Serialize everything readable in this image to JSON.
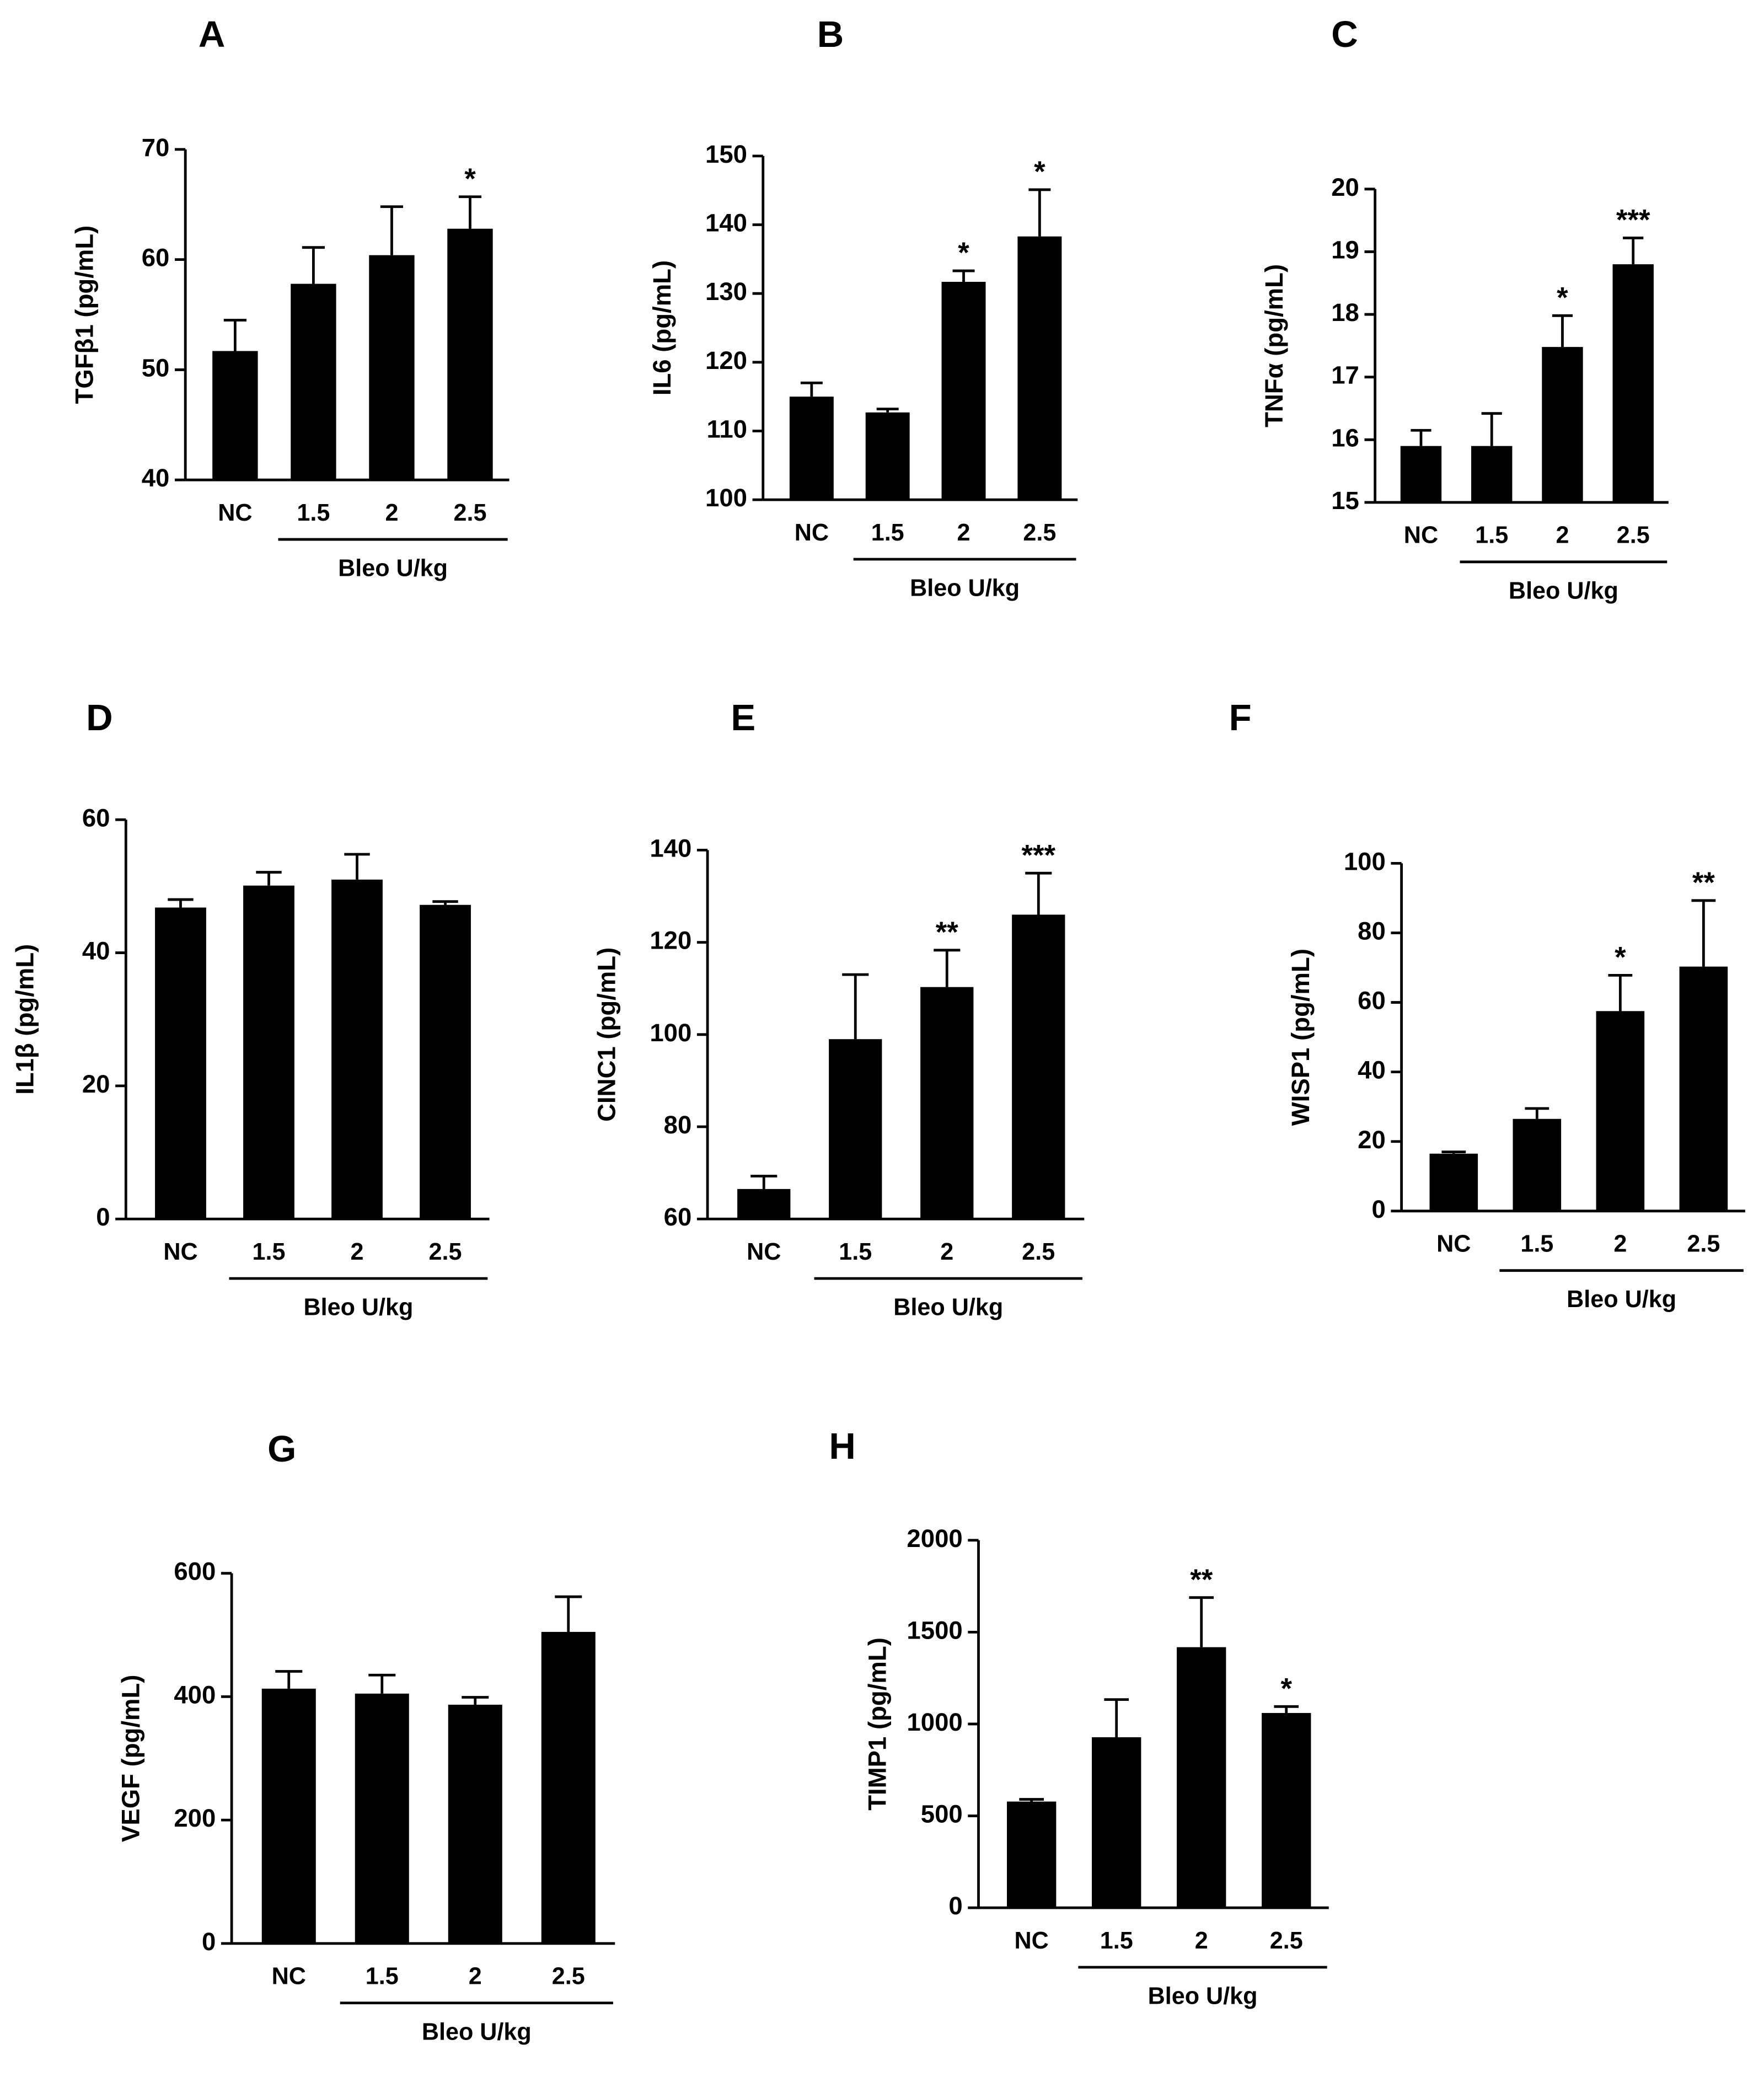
{
  "chart_data": [
    {
      "type": "bar",
      "panel": "A",
      "ylabel": "TGFβ1 (pg/mL)",
      "categories": [
        "NC",
        "1.5",
        "2",
        "2.5"
      ],
      "group_label": "Bleo U/kg",
      "values": [
        51.7,
        57.8,
        60.4,
        62.8
      ],
      "errors": [
        2.8,
        3.3,
        4.4,
        2.9
      ],
      "annotations": [
        null,
        null,
        null,
        "*"
      ],
      "color": "#000000",
      "ylim": [
        40,
        70
      ],
      "yticks": [
        40,
        50,
        60,
        70
      ]
    },
    {
      "type": "bar",
      "panel": "B",
      "ylabel": "IL6 (pg/mL)",
      "categories": [
        "NC",
        "1.5",
        "2",
        "2.5"
      ],
      "group_label": "Bleo U/kg",
      "values": [
        115,
        112.7,
        131.7,
        138.3
      ],
      "errors": [
        2,
        0.5,
        1.6,
        6.8
      ],
      "annotations": [
        null,
        null,
        "*",
        "*"
      ],
      "color": "#000000",
      "ylim": [
        100,
        150
      ],
      "yticks": [
        100,
        110,
        120,
        130,
        140,
        150
      ]
    },
    {
      "type": "bar",
      "panel": "C",
      "ylabel": "TNFα (pg/mL)",
      "categories": [
        "NC",
        "1.5",
        "2",
        "2.5"
      ],
      "group_label": "Bleo U/kg",
      "values": [
        15.9,
        15.9,
        17.48,
        18.8
      ],
      "errors": [
        0.25,
        0.52,
        0.5,
        0.42
      ],
      "annotations": [
        null,
        null,
        "*",
        "***"
      ],
      "color": "#000000",
      "ylim": [
        15,
        20
      ],
      "yticks": [
        15,
        16,
        17,
        18,
        19,
        20
      ]
    },
    {
      "type": "bar",
      "panel": "D",
      "ylabel": "IL1β (pg/mL)",
      "categories": [
        "NC",
        "1.5",
        "2",
        "2.5"
      ],
      "group_label": "Bleo U/kg",
      "values": [
        46.8,
        50.1,
        51,
        47.2
      ],
      "errors": [
        1.2,
        2,
        3.8,
        0.5
      ],
      "annotations": [
        null,
        null,
        null,
        null
      ],
      "color": "#000000",
      "ylim": [
        0,
        60
      ],
      "yticks": [
        0,
        20,
        40,
        60
      ]
    },
    {
      "type": "bar",
      "panel": "E",
      "ylabel": "CINC1 (pg/mL)",
      "categories": [
        "NC",
        "1.5",
        "2",
        "2.5"
      ],
      "group_label": "Bleo U/kg",
      "values": [
        66.5,
        99,
        110.3,
        126
      ],
      "errors": [
        2.8,
        14,
        8,
        9
      ],
      "annotations": [
        null,
        null,
        "**",
        "***"
      ],
      "color": "#000000",
      "ylim": [
        60,
        140
      ],
      "yticks": [
        60,
        80,
        100,
        120,
        140
      ]
    },
    {
      "type": "bar",
      "panel": "F",
      "ylabel": "WISP1 (pg/mL)",
      "categories": [
        "NC",
        "1.5",
        "2",
        "2.5"
      ],
      "group_label": "Bleo U/kg",
      "values": [
        16.5,
        26.5,
        57.5,
        70.3
      ],
      "errors": [
        0.5,
        3,
        10.3,
        19
      ],
      "annotations": [
        null,
        null,
        "*",
        "**"
      ],
      "color": "#000000",
      "ylim": [
        0,
        100
      ],
      "yticks": [
        0,
        20,
        40,
        60,
        80,
        100
      ]
    },
    {
      "type": "bar",
      "panel": "G",
      "ylabel": "VEGF (pg/mL)",
      "categories": [
        "NC",
        "1.5",
        "2",
        "2.5"
      ],
      "group_label": "Bleo U/kg",
      "values": [
        413,
        405,
        387,
        505
      ],
      "errors": [
        28,
        30,
        12,
        57
      ],
      "annotations": [
        null,
        null,
        null,
        null
      ],
      "color": "#000000",
      "ylim": [
        0,
        600
      ],
      "yticks": [
        0,
        200,
        400,
        600
      ]
    },
    {
      "type": "bar",
      "panel": "H",
      "ylabel": "TIMP1 (pg/mL)",
      "categories": [
        "NC",
        "1.5",
        "2",
        "2.5"
      ],
      "group_label": "Bleo U/kg",
      "values": [
        578,
        928,
        1418,
        1060
      ],
      "errors": [
        12,
        205,
        270,
        35
      ],
      "annotations": [
        null,
        null,
        "**",
        "*"
      ],
      "color": "#000000",
      "ylim": [
        0,
        2000
      ],
      "yticks": [
        0,
        500,
        1000,
        1500,
        2000
      ]
    }
  ]
}
